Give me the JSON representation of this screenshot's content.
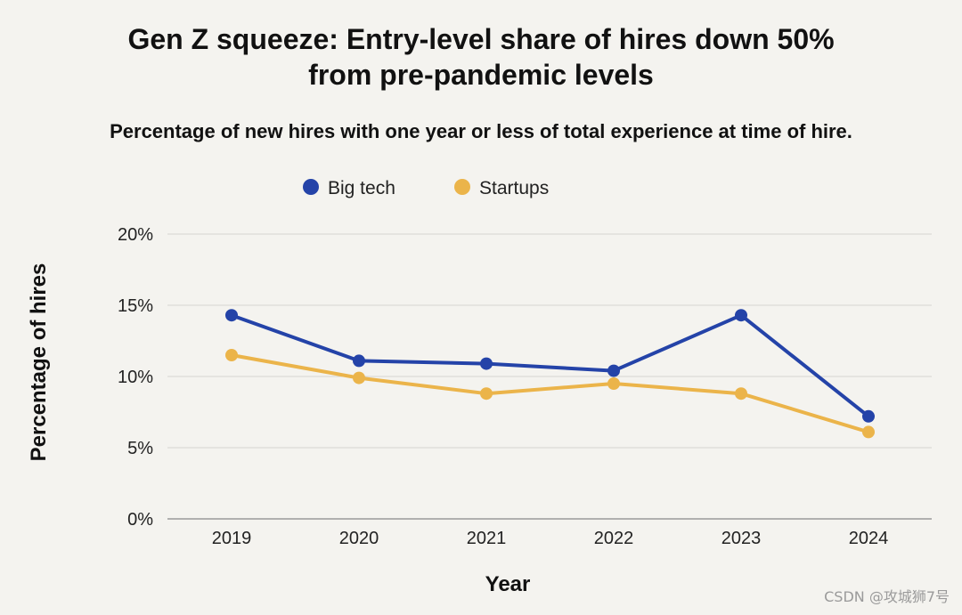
{
  "header": {
    "title_line1": "Gen Z squeeze: Entry-level share of hires down 50%",
    "title_line2": "from pre-pandemic levels",
    "subtitle": "Percentage of new hires with one year or less of total experience at time of hire."
  },
  "watermark": "CSDN @攻城狮7号",
  "chart_data": {
    "type": "line",
    "title": "Gen Z squeeze: Entry-level share of hires down 50% from pre-pandemic levels",
    "subtitle": "Percentage of new hires with one year or less of total experience at time of hire.",
    "xlabel": "Year",
    "ylabel": "Percentage of hires",
    "categories": [
      "2019",
      "2020",
      "2021",
      "2022",
      "2023",
      "2024"
    ],
    "ylim": [
      0,
      20
    ],
    "yticks": [
      0,
      5,
      10,
      15,
      20
    ],
    "ytick_labels": [
      "0%",
      "5%",
      "10%",
      "15%",
      "20%"
    ],
    "grid": true,
    "legend_position": "top-center",
    "series": [
      {
        "name": "Big tech",
        "color": "#2443a8",
        "values": [
          14.3,
          11.1,
          10.9,
          10.4,
          14.3,
          7.2
        ]
      },
      {
        "name": "Startups",
        "color": "#ebb44a",
        "values": [
          11.5,
          9.9,
          8.8,
          9.5,
          8.8,
          6.1
        ]
      }
    ]
  }
}
